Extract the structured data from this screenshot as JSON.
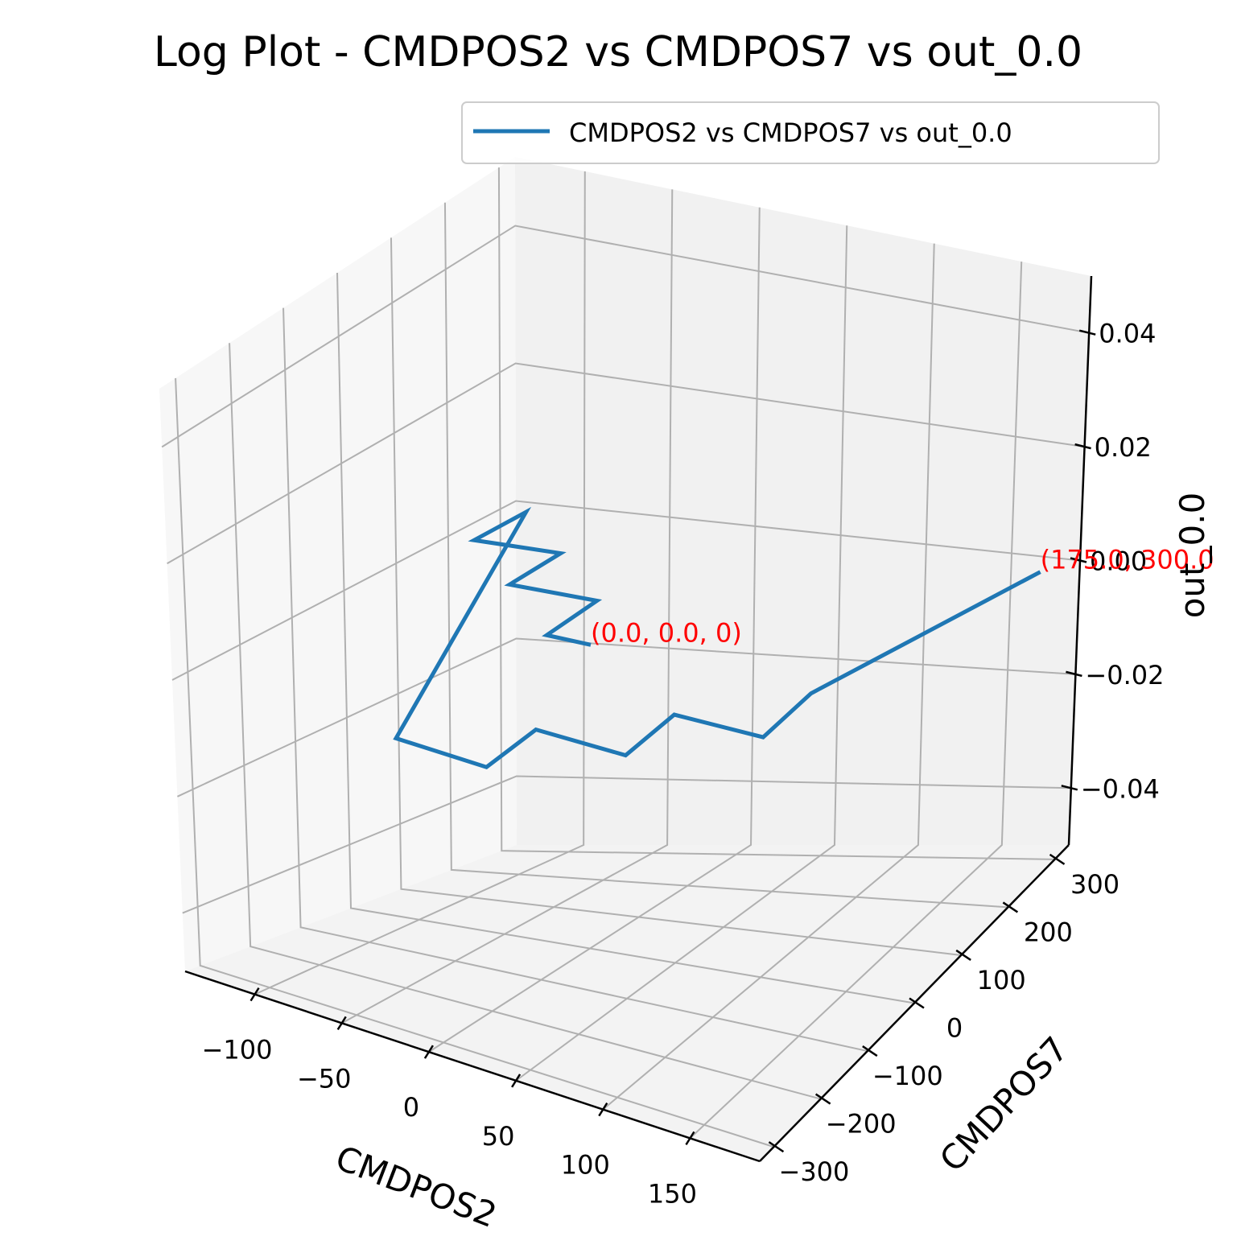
{
  "chart_data": {
    "type": "line",
    "projection": "3d",
    "title": "Log Plot - CMDPOS2 vs CMDPOS7 vs out_0.0",
    "xlabel": "CMDPOS2",
    "ylabel": "CMDPOS7",
    "zlabel": "out_0.0",
    "xlim": [
      -140,
      190
    ],
    "ylim": [
      -330,
      330
    ],
    "zlim": [
      -0.05,
      0.05
    ],
    "xticks": [
      -100,
      -50,
      0,
      50,
      100,
      150
    ],
    "xtick_labels": [
      "−100",
      "−50",
      "0",
      "50",
      "100",
      "150"
    ],
    "yticks": [
      -300,
      -200,
      -100,
      0,
      100,
      200,
      300
    ],
    "ytick_labels": [
      "−300",
      "−200",
      "−100",
      "0",
      "100",
      "200",
      "300"
    ],
    "zticks": [
      -0.04,
      -0.02,
      0.0,
      0.02,
      0.04
    ],
    "ztick_labels": [
      "−0.04",
      "−0.02",
      "0.00",
      "0.02",
      "0.04"
    ],
    "grid": true,
    "legend_position": "top-right",
    "series": [
      {
        "name": "CMDPOS2 vs CMDPOS7 vs out_0.0",
        "color": "#1f77b4",
        "x": [
          0,
          -25,
          -25,
          -75,
          -75,
          -125,
          -125,
          -25,
          25,
          25,
          75,
          75,
          125,
          125,
          175
        ],
        "y": [
          0,
          0,
          100,
          100,
          200,
          200,
          300,
          -300,
          -300,
          -200,
          -200,
          -100,
          -100,
          0,
          300
        ],
        "z": [
          0,
          0,
          0,
          0,
          0,
          0,
          0,
          0,
          0,
          0,
          0,
          0,
          0,
          0,
          0
        ]
      }
    ],
    "annotations": [
      {
        "text": "(0.0, 0.0, 0)",
        "x": 0,
        "y": 0,
        "z": 0,
        "color": "#ff0000"
      },
      {
        "text": "(175.0, 300.0",
        "x": 175,
        "y": 300,
        "z": 0,
        "color": "#ff0000"
      }
    ]
  }
}
